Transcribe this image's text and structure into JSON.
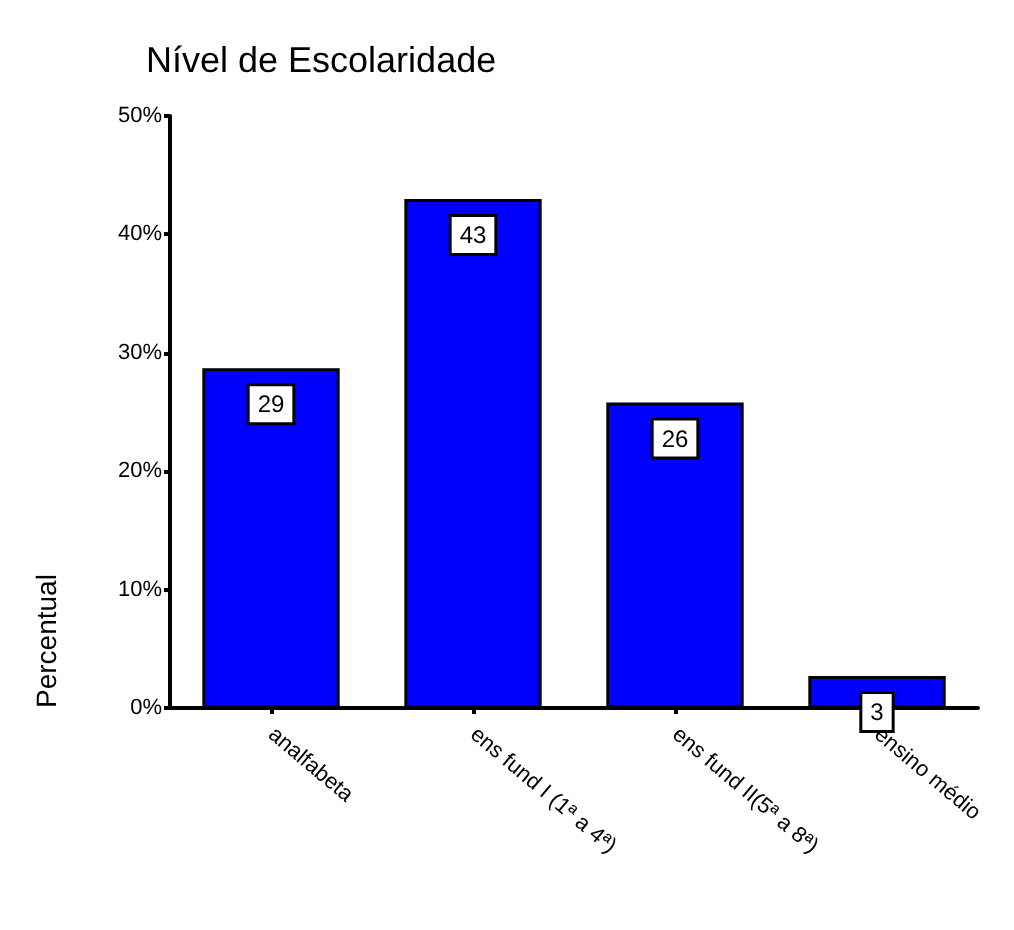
{
  "chart_data": {
    "type": "bar",
    "title": "Nível de Escolaridade",
    "ylabel": "Percentual",
    "categories": [
      "analfabeta",
      "ens fund I (1ª a 4ª)",
      "ens fund II(5ª a 8ª)",
      "ensino médio"
    ],
    "values": [
      28.7,
      43.0,
      25.8,
      2.7
    ],
    "value_labels": [
      "29",
      "43",
      "26",
      "3"
    ],
    "color": "#0000ff",
    "ylim": [
      0,
      50
    ],
    "yticks": [
      {
        "value": 0,
        "label": "0%"
      },
      {
        "value": 10,
        "label": "10%"
      },
      {
        "value": 20,
        "label": "20%"
      },
      {
        "value": 30,
        "label": "30%"
      },
      {
        "value": 40,
        "label": "40%"
      },
      {
        "value": 50,
        "label": "50%"
      }
    ],
    "grid": false
  }
}
